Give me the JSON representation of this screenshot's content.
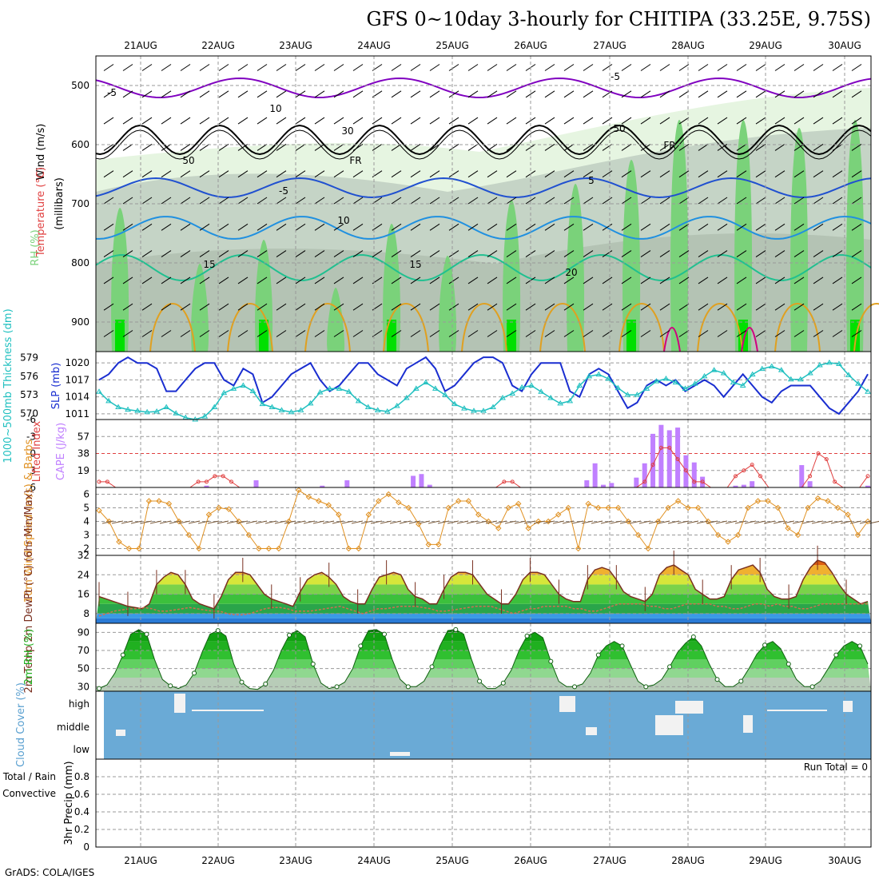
{
  "title": "GFS 0~10day 3-hourly for CHITIPA (33.25E, 9.75S)",
  "credit": "GrADS: COLA/IGES",
  "dates": [
    "21AUG",
    "22AUG",
    "23AUG",
    "24AUG",
    "25AUG",
    "26AUG",
    "27AUG",
    "28AUG",
    "29AUG",
    "30AUG"
  ],
  "colors": {
    "rh_light": "#e6f5e1",
    "rh_mid": "#c5d4c6",
    "rh_gray": "#b4c3b4",
    "rh_green": "#7ad27a",
    "rh_bright": "#00e000",
    "temp_m5": "#8000c0",
    "temp_0": "#000000",
    "temp_5": "#2050d0",
    "temp_10": "#2090e0",
    "temp_15": "#20c090",
    "temp_20": "#e0a020",
    "temp_25": "#d00080",
    "slp": "#1a2ed0",
    "thick": "#20c0c0",
    "cape": "#c080ff",
    "li": "#e04040",
    "wspd": "#e09020",
    "barb": "#7a5a3a",
    "temp2m": "#7a3020",
    "dewpt": "#d07050",
    "rh2m": "#20b020",
    "cloud_bg": "#6aaad6",
    "cloud_fg": "#f2f2f2"
  },
  "chart_data": [
    {
      "type": "heatmap",
      "name": "upper-air",
      "xlabel": "",
      "ylabel": "(millibars)",
      "side_labels": [
        "Wind (m/s)",
        "Temperature (°C)",
        "RH (%)"
      ],
      "yticks": [
        500,
        600,
        700,
        800,
        900
      ],
      "ylim": [
        950,
        450
      ],
      "isotherm_labels": [
        "-5",
        "-5",
        "FR",
        "FR",
        "-5",
        "5",
        "10",
        "15",
        "15",
        "20",
        "10",
        "30",
        "50",
        "50"
      ]
    },
    {
      "type": "line",
      "name": "slp-thickness",
      "ylabel_left": "1000~500mb Thickness (dm)",
      "ylabel_right": "SLP (mb)",
      "yticks_left": [
        570,
        573,
        576,
        579
      ],
      "yticks_right": [
        1011,
        1014,
        1017,
        1020
      ],
      "ylim_left": [
        569,
        580
      ],
      "ylim_right": [
        1010,
        1022
      ],
      "series": [
        {
          "name": "SLP (mb)",
          "values": [
            1017,
            1018,
            1020,
            1021,
            1020,
            1020,
            1019,
            1015,
            1015,
            1017,
            1019,
            1020,
            1020,
            1017,
            1016,
            1019,
            1018,
            1013,
            1014,
            1016,
            1018,
            1019,
            1020,
            1017,
            1015,
            1016,
            1018,
            1020,
            1020,
            1018,
            1017,
            1016,
            1019,
            1020,
            1021,
            1019,
            1015,
            1016,
            1018,
            1020,
            1021,
            1021,
            1020,
            1016,
            1015,
            1018,
            1020,
            1020,
            1020,
            1015,
            1014,
            1018,
            1019,
            1018,
            1015,
            1012,
            1013,
            1016,
            1017,
            1016,
            1017,
            1015,
            1016,
            1017,
            1016,
            1014,
            1016,
            1018,
            1016,
            1014,
            1013,
            1015,
            1016,
            1016,
            1016,
            1014,
            1012,
            1011,
            1013,
            1015,
            1018
          ]
        },
        {
          "name": "1000~500mb Thickness (dm)",
          "values": [
            573.5,
            572,
            571,
            570.6,
            570.4,
            570.2,
            570.3,
            571,
            570,
            569.3,
            569,
            569.5,
            571,
            573.3,
            574,
            574.5,
            573.6,
            571.5,
            571,
            570.5,
            570.2,
            570.5,
            571.6,
            573.4,
            574,
            574,
            573.5,
            572,
            571,
            570.5,
            570.3,
            571.2,
            572.5,
            574,
            575,
            574,
            573,
            571.5,
            570.8,
            570.4,
            570.4,
            571,
            572.5,
            573.2,
            574.2,
            574.5,
            573.5,
            572.5,
            571.6,
            572,
            574.5,
            576,
            576.3,
            575.6,
            574.1,
            573,
            573,
            574,
            575.2,
            575.6,
            575,
            574,
            574.8,
            576,
            577,
            576.5,
            575,
            574.5,
            576.3,
            577.2,
            577.6,
            577,
            575.5,
            575.5,
            576.5,
            577.8,
            578.2,
            578,
            576.2,
            574.8,
            573.5
          ]
        }
      ]
    },
    {
      "type": "bar",
      "name": "cape-li",
      "ylabel_left": "Lifted Index",
      "ylabel_right": "CAPE (J/kg)",
      "yticks_left": [
        -6,
        -3,
        0,
        3,
        6
      ],
      "yticks_right": [
        19,
        38,
        57
      ],
      "ylim_left": [
        -6,
        6
      ],
      "ylim_right": [
        0,
        76
      ],
      "series": [
        {
          "name": "CAPE (J/kg)",
          "values": [
            0,
            0,
            0,
            0,
            0,
            0,
            0,
            0,
            0,
            0,
            0,
            0,
            0,
            2,
            0,
            0,
            0,
            0,
            0,
            8,
            0,
            0,
            0,
            0,
            0,
            0,
            0,
            2,
            0,
            0,
            8,
            0,
            0,
            0,
            0,
            0,
            0,
            0,
            13,
            15,
            3,
            0,
            0,
            0,
            0,
            0,
            0,
            0,
            0,
            0,
            0,
            0,
            0,
            0,
            0,
            0,
            0,
            0,
            0,
            8,
            27,
            3,
            5,
            0,
            0,
            11,
            27,
            60,
            70,
            64,
            67,
            36,
            28,
            12,
            0,
            0,
            0,
            2,
            3,
            7,
            0,
            0,
            0,
            0,
            0,
            25,
            7,
            0,
            0,
            0,
            0,
            0,
            0,
            2
          ]
        },
        {
          "name": "Lifted Index",
          "values": [
            5,
            5,
            6,
            6,
            6,
            6,
            6,
            6,
            6,
            6,
            6,
            6,
            5,
            5,
            4,
            4,
            5,
            6,
            6,
            6,
            6,
            6,
            6,
            6,
            6,
            6,
            6,
            6,
            6,
            6,
            6,
            6,
            6,
            6,
            6,
            6,
            6,
            6,
            6,
            6,
            6,
            6,
            6,
            6,
            6,
            6,
            6,
            6,
            6,
            5,
            5,
            6,
            6,
            6,
            6,
            6,
            6,
            6,
            6,
            6,
            6,
            6,
            6,
            6,
            6,
            6,
            5,
            2,
            -1,
            -1,
            1,
            3,
            5,
            5,
            6,
            6,
            6,
            4,
            3,
            2,
            4,
            6,
            6,
            6,
            6,
            6,
            4,
            0,
            1,
            5,
            6,
            6,
            6,
            4
          ]
        }
      ]
    },
    {
      "type": "line",
      "name": "wind10m",
      "ylabel": "10m Wind Speed (m/s) & Barbs",
      "yticks": [
        2,
        3,
        4,
        5,
        6
      ],
      "ylim": [
        1.5,
        6.5
      ],
      "series": [
        {
          "name": "Speed",
          "values": [
            4.8,
            4,
            2.5,
            2,
            2,
            5.5,
            5.5,
            5.3,
            4,
            3,
            2,
            4.5,
            5,
            4.9,
            4,
            3,
            2,
            2,
            2,
            4,
            6.3,
            5.8,
            5.5,
            5.2,
            4.5,
            2,
            2,
            4.5,
            5.5,
            6,
            5.4,
            5,
            3.8,
            2.3,
            2.3,
            5,
            5.5,
            5.5,
            4.5,
            4,
            3.5,
            5,
            5.3,
            3.5,
            4,
            4,
            4.5,
            5,
            2,
            5.3,
            5,
            5,
            5,
            4,
            3,
            2,
            4,
            5,
            5.5,
            5,
            5,
            4,
            3,
            2.5,
            3,
            5,
            5.5,
            5.5,
            5,
            3.5,
            3,
            5,
            5.7,
            5.5,
            5,
            4.5,
            3,
            4
          ]
        }
      ]
    },
    {
      "type": "area",
      "name": "temp2m",
      "ylabel": "2m Temp 2m DewPt (°C) (6hr Min/Max)",
      "yticks": [
        8,
        16,
        24,
        32
      ],
      "ylim": [
        4,
        32
      ],
      "series": [
        {
          "name": "2m Temp",
          "values": [
            15,
            14,
            13,
            12,
            11,
            10.5,
            10,
            12,
            20,
            23,
            25,
            24,
            20,
            14,
            12,
            11,
            10,
            15,
            22,
            25,
            25,
            24,
            20,
            16,
            14,
            13,
            12,
            11,
            17,
            22,
            24,
            25,
            23,
            20,
            15,
            13,
            12,
            12,
            18,
            23,
            24,
            25,
            24,
            18,
            15,
            14,
            12,
            12,
            18,
            23,
            25,
            25,
            24,
            20,
            16,
            14,
            12,
            12,
            16,
            22,
            25,
            25,
            24,
            20,
            16,
            14,
            13,
            13,
            22,
            26,
            27,
            26,
            22,
            17,
            15,
            14,
            13,
            16,
            24,
            27,
            28,
            26,
            24,
            18,
            16,
            14,
            14,
            15,
            22,
            26,
            27,
            28,
            25,
            18,
            15,
            14,
            14,
            15,
            22,
            27,
            30,
            29,
            25,
            20,
            16,
            14,
            12,
            13
          ]
        },
        {
          "name": "2m DewPt",
          "values": [
            7,
            8,
            9,
            9.5,
            10,
            10,
            10.5,
            10,
            9,
            9,
            9.5,
            10,
            10.5,
            10,
            9.5,
            9,
            9,
            8,
            7.5,
            7.5,
            8,
            9,
            10,
            10.5,
            10.5,
            10,
            9,
            9,
            9,
            9.5,
            10,
            10.5,
            11,
            10,
            9,
            8,
            9,
            10,
            10,
            10.5,
            11,
            11,
            11,
            10.5,
            10,
            9,
            9,
            9.5,
            10,
            10.5,
            11,
            11,
            11,
            10,
            9,
            8,
            9,
            10,
            10,
            11,
            11,
            11,
            11,
            10,
            10,
            9,
            9,
            10,
            11,
            12,
            12,
            12,
            12,
            11,
            11,
            10,
            10,
            11,
            12,
            12,
            12,
            12,
            11,
            11,
            10,
            10,
            11,
            12,
            12,
            11,
            12,
            11,
            11,
            10,
            10,
            11,
            12,
            12,
            12,
            12,
            12,
            12,
            12
          ]
        }
      ]
    },
    {
      "type": "area",
      "name": "rh2m",
      "ylabel": "2m RH (%)",
      "yticks": [
        30,
        50,
        70,
        90
      ],
      "ylim": [
        25,
        100
      ],
      "values": [
        28,
        32,
        45,
        65,
        88,
        93,
        88,
        60,
        38,
        31,
        28,
        32,
        45,
        68,
        88,
        92,
        86,
        55,
        35,
        28,
        27,
        33,
        48,
        70,
        87,
        92,
        85,
        55,
        34,
        28,
        30,
        35,
        50,
        75,
        92,
        93,
        88,
        60,
        38,
        30,
        30,
        36,
        52,
        75,
        92,
        93,
        88,
        60,
        36,
        28,
        28,
        34,
        48,
        70,
        86,
        90,
        84,
        58,
        36,
        30,
        30,
        33,
        45,
        65,
        75,
        80,
        75,
        55,
        36,
        30,
        32,
        38,
        52,
        68,
        78,
        85,
        75,
        55,
        38,
        30,
        30,
        36,
        50,
        66,
        76,
        80,
        72,
        55,
        38,
        30,
        30,
        36,
        50,
        65,
        75,
        80,
        75,
        55
      ]
    },
    {
      "type": "bar",
      "name": "cloud",
      "ylabel": "Cloud Cover (%)",
      "yticks": [
        "low",
        "middle",
        "high"
      ]
    },
    {
      "type": "bar",
      "name": "precip",
      "ylabel": "3hr Precip (mm)",
      "ylabel_left": "Total / Rain",
      "ylabel_left2": "Convective",
      "yticks": [
        0,
        0.2,
        0.4,
        0.6,
        0.8
      ],
      "ylim": [
        0,
        1
      ],
      "run_total_label": "Run Total = 0",
      "values": []
    }
  ]
}
